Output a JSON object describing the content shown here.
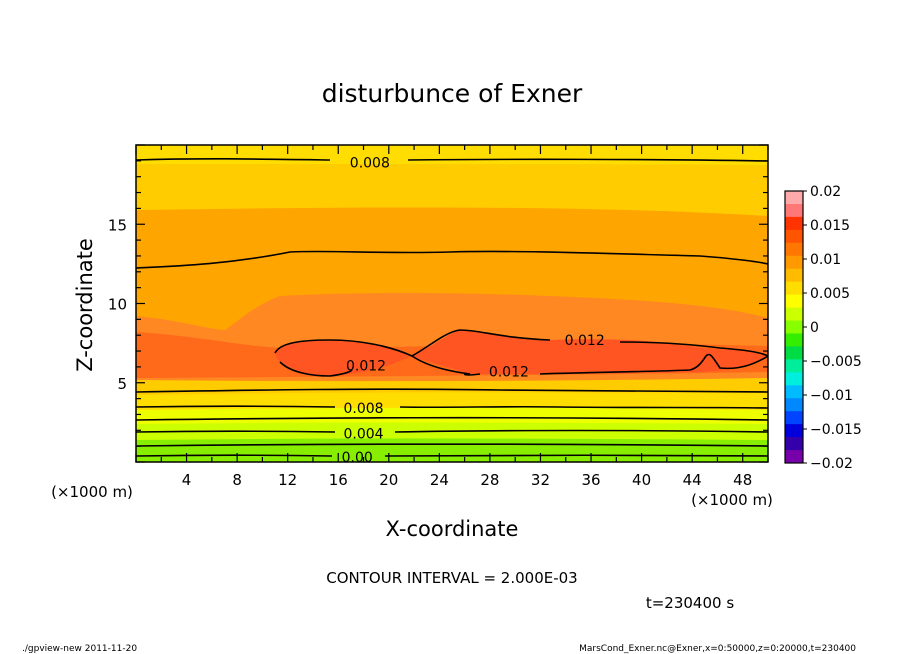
{
  "chart_data": {
    "type": "contour",
    "title": "disturbunce of Exner",
    "xlabel": "X-coordinate",
    "ylabel": "Z-coordinate",
    "x_unit": "(×1000 m)",
    "y_unit": "(×1000 m)",
    "xlim": [
      0,
      50
    ],
    "ylim": [
      0,
      20
    ],
    "x_ticks": [
      4,
      8,
      12,
      16,
      20,
      24,
      28,
      32,
      36,
      40,
      44,
      48
    ],
    "y_ticks": [
      5,
      10,
      15
    ],
    "contour_interval_text": "CONTOUR INTERVAL = 2.000E-03",
    "time_text": "t=230400 s",
    "contour_labels": [
      {
        "text": "0.008",
        "x": 18.5,
        "z": 18.9
      },
      {
        "text": "0.012",
        "x": 18.2,
        "z": 6.1
      },
      {
        "text": "0.012",
        "x": 29.5,
        "z": 5.7
      },
      {
        "text": "0.012",
        "x": 35.5,
        "z": 7.7
      },
      {
        "text": "0.008",
        "x": 18.0,
        "z": 3.4
      },
      {
        "text": "0.004",
        "x": 18.0,
        "z": 1.8
      },
      {
        "text": "0.00",
        "x": 17.5,
        "z": 0.3
      }
    ],
    "colorbar": {
      "levels": [
        -0.02,
        -0.015,
        -0.01,
        -0.005,
        0,
        0.005,
        0.01,
        0.015,
        0.02
      ],
      "tick_labels": [
        "0.02",
        "0.015",
        "0.01",
        "0.005",
        "0",
        "−0.005",
        "−0.01",
        "−0.015",
        "−0.02"
      ],
      "colors": [
        "#ffaaaa",
        "#ff7777",
        "#ff3300",
        "#ff5500",
        "#ff7700",
        "#ff9900",
        "#ffbb00",
        "#ffdd00",
        "#ffff00",
        "#ccff00",
        "#88ff00",
        "#33ee00",
        "#00dd44",
        "#00ee99",
        "#00eedd",
        "#00bbff",
        "#0088ff",
        "#0044ff",
        "#0000dd",
        "#3300aa",
        "#7700aa"
      ]
    }
  },
  "footer": {
    "left": "./gpview-new   2011-11-20",
    "right": "MarsCond_Exner.nc@Exner,x=0:50000,z=0:20000,t=230400"
  },
  "colors": {
    "fill_0000": "#88ee00",
    "fill_0002": "#ccff00",
    "fill_0004": "#eeff00",
    "fill_0006": "#ffdd00",
    "fill_0008": "#ffcc00",
    "fill_0010": "#ffa500",
    "fill_0012": "#ff8822",
    "fill_0014": "#ff6a1a",
    "fill_0016": "#ff5522"
  }
}
